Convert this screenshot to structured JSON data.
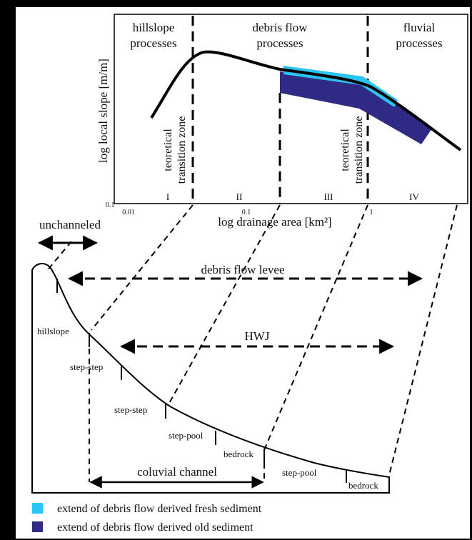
{
  "top_chart": {
    "zones": [
      {
        "lines": [
          "hillslope",
          "processes"
        ]
      },
      {
        "lines": [
          "debris flow",
          "processes"
        ]
      },
      {
        "lines": [
          "fluvial",
          "processes"
        ]
      }
    ],
    "y_axis_label": "log local slope [m/m]",
    "x_axis_label": "log drainage area [km²]",
    "x_ticks": [
      "0.01",
      "0.1",
      "1"
    ],
    "y_tick": "0.1",
    "regions": [
      "I",
      "II",
      "III",
      "IV"
    ],
    "transition_zones": [
      {
        "lines": [
          "teoretical",
          "transition zone"
        ]
      },
      {
        "lines": [
          "teoretical",
          "transition zone"
        ]
      }
    ]
  },
  "profile": {
    "unchanneled": "unchanneled",
    "levee": "debris flow levee",
    "hwj": "HWJ",
    "features": [
      "hillslope",
      "step-step",
      "step-step",
      "step-pool",
      "bedrock",
      "step-pool",
      "bedrock"
    ],
    "channel": "coluvial channel"
  },
  "legend": [
    {
      "label": "extend of debris flow derived fresh sediment",
      "color": "#2ac4f2"
    },
    {
      "label": "extend of debris flow derived old sediment",
      "color": "#2f2b84"
    }
  ]
}
